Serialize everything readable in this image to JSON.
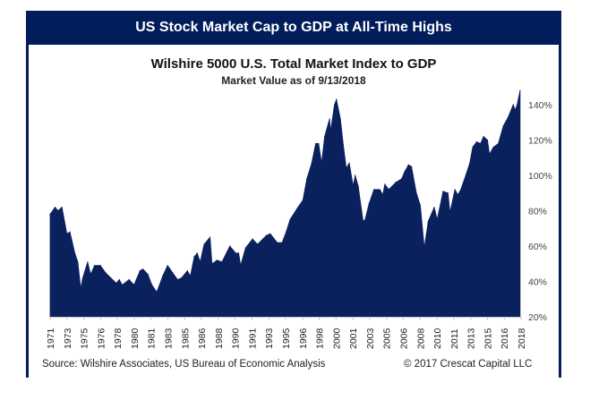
{
  "header": {
    "banner_title": "US Stock Market Cap to GDP at All-Time Highs"
  },
  "footer": {
    "source": "Source: Wilshire Associates, US Bureau of Economic Analysis",
    "copyright": "© 2017 Crescat Capital LLC"
  },
  "colors": {
    "banner": "#021d5b",
    "area_fill": "#0b215e",
    "axis": "#c8c8c8"
  },
  "chart_data": {
    "type": "area",
    "title": "Wilshire 5000 U.S. Total Market Index to GDP",
    "subtitle": "Market Value as of 9/13/2018",
    "xlabel": "",
    "ylabel": "",
    "xlim": [
      1971,
      2018.7
    ],
    "ylim": [
      20,
      150
    ],
    "y_axis_side": "right",
    "y_ticks": [
      20,
      40,
      60,
      80,
      100,
      120,
      140
    ],
    "y_tick_labels": [
      "20%",
      "40%",
      "60%",
      "80%",
      "100%",
      "120%",
      "140%"
    ],
    "x_tick_labels": [
      "1971",
      "1973",
      "1975",
      "1976",
      "1978",
      "1980",
      "1981",
      "1983",
      "1985",
      "1986",
      "1988",
      "1990",
      "1991",
      "1993",
      "1995",
      "1996",
      "1998",
      "2000",
      "2001",
      "2003",
      "2005",
      "2006",
      "2008",
      "2010",
      "2011",
      "2013",
      "2015",
      "2016",
      "2018"
    ],
    "grid": false,
    "legend": "none",
    "series": [
      {
        "name": "Wilshire 5000 to GDP (%)",
        "points": [
          [
            1971.0,
            78
          ],
          [
            1971.5,
            82
          ],
          [
            1971.8,
            80
          ],
          [
            1972.2,
            82
          ],
          [
            1972.7,
            67
          ],
          [
            1973.0,
            68
          ],
          [
            1973.5,
            56
          ],
          [
            1973.8,
            51
          ],
          [
            1974.1,
            36
          ],
          [
            1974.3,
            42
          ],
          [
            1974.8,
            51
          ],
          [
            1975.1,
            44
          ],
          [
            1975.5,
            49
          ],
          [
            1976.1,
            49
          ],
          [
            1976.6,
            45
          ],
          [
            1977.7,
            39
          ],
          [
            1978.0,
            41
          ],
          [
            1978.3,
            38
          ],
          [
            1979.0,
            41
          ],
          [
            1979.5,
            38
          ],
          [
            1980.1,
            46
          ],
          [
            1980.4,
            47
          ],
          [
            1980.9,
            44
          ],
          [
            1981.3,
            38
          ],
          [
            1981.8,
            34
          ],
          [
            1982.4,
            43
          ],
          [
            1982.9,
            49
          ],
          [
            1983.4,
            45
          ],
          [
            1983.9,
            41
          ],
          [
            1984.3,
            42
          ],
          [
            1984.9,
            46
          ],
          [
            1985.2,
            43
          ],
          [
            1985.6,
            54
          ],
          [
            1985.9,
            56
          ],
          [
            1986.2,
            51
          ],
          [
            1986.6,
            61
          ],
          [
            1987.2,
            65
          ],
          [
            1987.4,
            50
          ],
          [
            1987.9,
            52
          ],
          [
            1988.4,
            51
          ],
          [
            1989.2,
            60
          ],
          [
            1989.8,
            56
          ],
          [
            1990.1,
            56
          ],
          [
            1990.3,
            49
          ],
          [
            1990.8,
            59
          ],
          [
            1991.5,
            64
          ],
          [
            1992.0,
            61
          ],
          [
            1992.9,
            66
          ],
          [
            1993.3,
            67
          ],
          [
            1994.0,
            62
          ],
          [
            1994.5,
            62
          ],
          [
            1994.9,
            68
          ],
          [
            1995.3,
            75
          ],
          [
            1996.1,
            82
          ],
          [
            1996.6,
            86
          ],
          [
            1997.0,
            98
          ],
          [
            1997.5,
            107
          ],
          [
            1997.9,
            118
          ],
          [
            1998.2,
            118
          ],
          [
            1998.5,
            107
          ],
          [
            1998.8,
            122
          ],
          [
            1999.3,
            132
          ],
          [
            1999.4,
            125
          ],
          [
            1999.8,
            140
          ],
          [
            2000.0,
            143
          ],
          [
            2000.4,
            132
          ],
          [
            2000.7,
            117
          ],
          [
            2001.0,
            104
          ],
          [
            2001.3,
            107
          ],
          [
            2001.7,
            94
          ],
          [
            2001.9,
            100
          ],
          [
            2002.2,
            94
          ],
          [
            2002.7,
            74
          ],
          [
            2002.9,
            75
          ],
          [
            2003.3,
            84
          ],
          [
            2003.8,
            92
          ],
          [
            2004.4,
            92
          ],
          [
            2004.7,
            89
          ],
          [
            2004.9,
            95
          ],
          [
            2005.3,
            92
          ],
          [
            2006.0,
            96
          ],
          [
            2006.6,
            98
          ],
          [
            2006.9,
            102
          ],
          [
            2007.3,
            106
          ],
          [
            2007.6,
            105
          ],
          [
            2008.1,
            90
          ],
          [
            2008.5,
            83
          ],
          [
            2008.9,
            59
          ],
          [
            2009.3,
            74
          ],
          [
            2009.9,
            82
          ],
          [
            2010.2,
            75
          ],
          [
            2010.8,
            91
          ],
          [
            2011.3,
            90
          ],
          [
            2011.5,
            79
          ],
          [
            2012.0,
            92
          ],
          [
            2012.3,
            89
          ],
          [
            2012.6,
            92
          ],
          [
            2013.1,
            100
          ],
          [
            2013.5,
            107
          ],
          [
            2013.8,
            116
          ],
          [
            2014.2,
            119
          ],
          [
            2014.6,
            118
          ],
          [
            2014.9,
            122
          ],
          [
            2015.3,
            120
          ],
          [
            2015.5,
            112
          ],
          [
            2015.9,
            116
          ],
          [
            2016.4,
            118
          ],
          [
            2016.9,
            128
          ],
          [
            2017.4,
            133
          ],
          [
            2017.9,
            140
          ],
          [
            2018.1,
            137
          ],
          [
            2018.3,
            140
          ],
          [
            2018.6,
            148
          ]
        ]
      }
    ]
  }
}
